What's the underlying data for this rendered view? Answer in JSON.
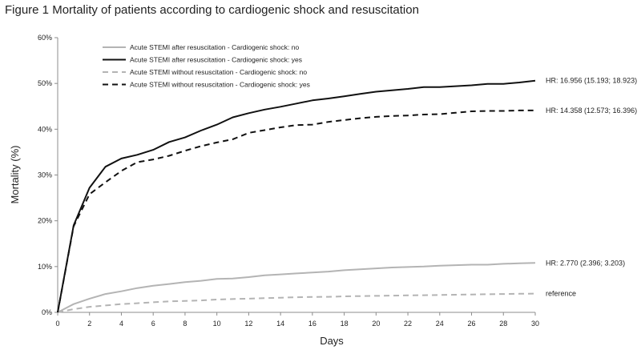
{
  "figure_title": "Figure 1 Mortality of patients according to cardiogenic shock and resuscitation",
  "chart_data": {
    "type": "line",
    "title": "Figure 1 Mortality of patients according to cardiogenic shock and resuscitation",
    "xlabel": "Days",
    "ylabel": "Mortality (%)",
    "xlim": [
      0,
      30
    ],
    "ylim": [
      0,
      60
    ],
    "x_ticks": [
      "0",
      "2",
      "4",
      "6",
      "8",
      "10",
      "12",
      "14",
      "16",
      "18",
      "20",
      "22",
      "24",
      "26",
      "28",
      "30"
    ],
    "y_ticks": [
      "0%",
      "10%",
      "20%",
      "30%",
      "40%",
      "50%",
      "60%"
    ],
    "grid": false,
    "legend_position": "top-left",
    "series": [
      {
        "name": "Acute STEMI after resuscitation - Cardiogenic shock: no",
        "color": "#b4b4b4",
        "dash": "solid",
        "annotation": "HR: 2.770 (2.396; 3.203)",
        "x": [
          0,
          1,
          2,
          3,
          4,
          5,
          6,
          7,
          8,
          9,
          10,
          11,
          12,
          13,
          14,
          15,
          16,
          17,
          18,
          19,
          20,
          21,
          22,
          23,
          24,
          25,
          26,
          27,
          28,
          29,
          30
        ],
        "y": [
          0,
          1.8,
          3.0,
          4.0,
          4.6,
          5.3,
          5.8,
          6.2,
          6.6,
          6.9,
          7.3,
          7.4,
          7.7,
          8.1,
          8.3,
          8.5,
          8.7,
          8.9,
          9.2,
          9.4,
          9.6,
          9.8,
          9.9,
          10.0,
          10.2,
          10.3,
          10.4,
          10.4,
          10.6,
          10.7,
          10.8
        ]
      },
      {
        "name": "Acute STEMI after resuscitation - Cardiogenic shock: yes",
        "color": "#111111",
        "dash": "solid",
        "annotation": "HR: 16.956 (15.193; 18.923)",
        "x": [
          0,
          1,
          2,
          3,
          4,
          5,
          6,
          7,
          8,
          9,
          10,
          11,
          12,
          13,
          14,
          15,
          16,
          17,
          18,
          19,
          20,
          21,
          22,
          23,
          24,
          25,
          26,
          27,
          28,
          29,
          30
        ],
        "y": [
          0,
          19.0,
          27.2,
          31.8,
          33.6,
          34.4,
          35.5,
          37.2,
          38.2,
          39.7,
          41.0,
          42.6,
          43.5,
          44.3,
          44.9,
          45.6,
          46.3,
          46.7,
          47.2,
          47.7,
          48.2,
          48.5,
          48.8,
          49.2,
          49.2,
          49.4,
          49.6,
          49.9,
          49.9,
          50.2,
          50.6
        ]
      },
      {
        "name": "Acute STEMI without resuscitation - Cardiogenic shock: no",
        "color": "#b4b4b4",
        "dash": "dashed",
        "annotation": "reference",
        "x": [
          0,
          1,
          2,
          3,
          4,
          5,
          6,
          7,
          8,
          9,
          10,
          11,
          12,
          13,
          14,
          15,
          16,
          17,
          18,
          19,
          20,
          21,
          22,
          23,
          24,
          25,
          26,
          27,
          28,
          29,
          30
        ],
        "y": [
          0,
          0.7,
          1.2,
          1.5,
          1.8,
          2.0,
          2.2,
          2.4,
          2.5,
          2.6,
          2.8,
          2.9,
          3.0,
          3.1,
          3.2,
          3.3,
          3.35,
          3.4,
          3.5,
          3.55,
          3.6,
          3.65,
          3.7,
          3.75,
          3.8,
          3.85,
          3.9,
          3.95,
          4.0,
          4.05,
          4.1
        ]
      },
      {
        "name": "Acute STEMI without resuscitation - Cardiogenic shock: yes",
        "color": "#111111",
        "dash": "dashed",
        "annotation": "HR: 14.358 (12.573; 16.396)",
        "x": [
          0,
          1,
          2,
          3,
          4,
          5,
          6,
          7,
          8,
          9,
          10,
          11,
          12,
          13,
          14,
          15,
          16,
          17,
          18,
          19,
          20,
          21,
          22,
          23,
          24,
          25,
          26,
          27,
          28,
          29,
          30
        ],
        "y": [
          0,
          18.8,
          25.8,
          28.4,
          30.9,
          32.8,
          33.4,
          34.2,
          35.3,
          36.3,
          37.1,
          37.8,
          39.2,
          39.8,
          40.4,
          40.9,
          41.0,
          41.6,
          42.0,
          42.4,
          42.7,
          42.9,
          43.0,
          43.2,
          43.3,
          43.6,
          43.9,
          44.0,
          44.0,
          44.1,
          44.1
        ]
      }
    ]
  }
}
